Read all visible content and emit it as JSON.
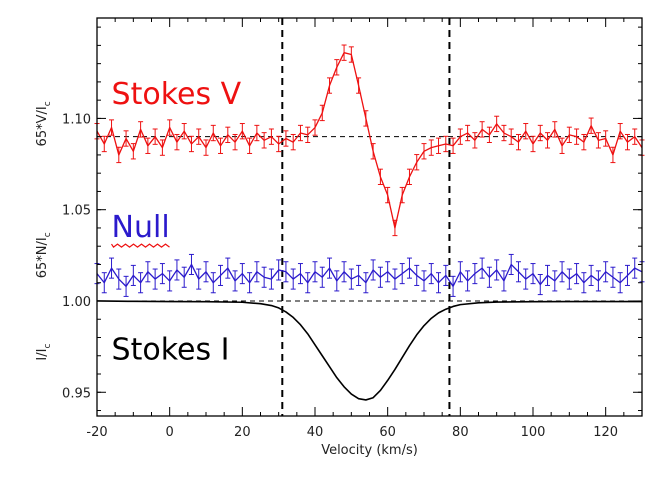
{
  "chart_data": {
    "type": "line",
    "title": "",
    "xlabel": "Velocity (km/s)",
    "xlim": [
      -20,
      130
    ],
    "ylim": [
      0.937,
      1.155
    ],
    "x_ticks": [
      -20,
      0,
      20,
      40,
      60,
      80,
      100,
      120
    ],
    "y_ticks": [
      0.95,
      1.0,
      1.05,
      1.1
    ],
    "y_tick_labels": [
      "0.95",
      "1.00",
      "1.05",
      "1.10"
    ],
    "ylabels": [
      {
        "id": "v",
        "parts": [
          "65*V/I",
          "c"
        ],
        "y_center": 1.097
      },
      {
        "id": "n",
        "parts": [
          "65*N/I",
          "c"
        ],
        "y_center": 1.025
      },
      {
        "id": "i",
        "parts": [
          "I/I",
          "c"
        ],
        "y_center": 0.972
      }
    ],
    "annotations": [
      {
        "id": "stokes-v",
        "text": "Stokes V",
        "color": "#ee1111",
        "x": -16,
        "y": 1.108
      },
      {
        "id": "null",
        "text": "Null",
        "color": "#2b1acc",
        "x": -16,
        "y": 1.035,
        "squiggle_color": "#ee1111"
      },
      {
        "id": "stokes-i",
        "text": "Stokes I",
        "color": "#000000",
        "x": -16,
        "y": 0.968
      }
    ],
    "reference_lines": {
      "horizontal": [
        1.09,
        1.0
      ],
      "vertical": [
        31,
        77
      ]
    },
    "series": [
      {
        "name": "Stokes V",
        "color": "#ee1111",
        "errorbar": 0.0042,
        "x": [
          -20,
          -18,
          -16,
          -14,
          -12,
          -10,
          -8,
          -6,
          -4,
          -2,
          0,
          2,
          4,
          6,
          8,
          10,
          12,
          14,
          16,
          18,
          20,
          22,
          24,
          26,
          28,
          30,
          32,
          34,
          36,
          38,
          40,
          42,
          44,
          46,
          48,
          50,
          52,
          54,
          56,
          58,
          60,
          62,
          64,
          66,
          68,
          70,
          72,
          74,
          76,
          78,
          80,
          82,
          84,
          86,
          88,
          90,
          92,
          94,
          96,
          98,
          100,
          102,
          104,
          106,
          108,
          110,
          112,
          114,
          116,
          118,
          120,
          122,
          124,
          126,
          128,
          130
        ],
        "values": [
          1.093,
          1.086,
          1.095,
          1.08,
          1.089,
          1.082,
          1.094,
          1.085,
          1.09,
          1.084,
          1.095,
          1.087,
          1.093,
          1.086,
          1.09,
          1.084,
          1.092,
          1.085,
          1.091,
          1.087,
          1.093,
          1.085,
          1.092,
          1.088,
          1.09,
          1.086,
          1.089,
          1.087,
          1.092,
          1.091,
          1.095,
          1.103,
          1.118,
          1.128,
          1.136,
          1.135,
          1.118,
          1.1,
          1.082,
          1.068,
          1.058,
          1.04,
          1.058,
          1.068,
          1.076,
          1.082,
          1.084,
          1.085,
          1.086,
          1.085,
          1.09,
          1.092,
          1.088,
          1.094,
          1.091,
          1.097,
          1.092,
          1.09,
          1.087,
          1.093,
          1.086,
          1.092,
          1.088,
          1.094,
          1.085,
          1.091,
          1.09,
          1.087,
          1.096,
          1.088,
          1.089,
          1.08,
          1.093,
          1.087,
          1.09,
          1.084
        ]
      },
      {
        "name": "Null",
        "color": "#2b1acc",
        "errorbar": 0.0055,
        "x": [
          -20,
          -18,
          -16,
          -14,
          -12,
          -10,
          -8,
          -6,
          -4,
          -2,
          0,
          2,
          4,
          6,
          8,
          10,
          12,
          14,
          16,
          18,
          20,
          22,
          24,
          26,
          28,
          30,
          32,
          34,
          36,
          38,
          40,
          42,
          44,
          46,
          48,
          50,
          52,
          54,
          56,
          58,
          60,
          62,
          64,
          66,
          68,
          70,
          72,
          74,
          76,
          78,
          80,
          82,
          84,
          86,
          88,
          90,
          92,
          94,
          96,
          98,
          100,
          102,
          104,
          106,
          108,
          110,
          112,
          114,
          116,
          118,
          120,
          122,
          124,
          126,
          128,
          130
        ],
        "values": [
          1.015,
          1.01,
          1.018,
          1.012,
          1.008,
          1.014,
          1.01,
          1.016,
          1.012,
          1.015,
          1.011,
          1.017,
          1.013,
          1.02,
          1.012,
          1.016,
          1.01,
          1.014,
          1.018,
          1.011,
          1.015,
          1.01,
          1.016,
          1.013,
          1.012,
          1.017,
          1.016,
          1.012,
          1.015,
          1.01,
          1.016,
          1.013,
          1.018,
          1.011,
          1.016,
          1.012,
          1.014,
          1.01,
          1.017,
          1.013,
          1.016,
          1.012,
          1.015,
          1.018,
          1.014,
          1.011,
          1.015,
          1.01,
          1.014,
          1.008,
          1.016,
          1.011,
          1.015,
          1.018,
          1.013,
          1.017,
          1.011,
          1.02,
          1.016,
          1.012,
          1.015,
          1.009,
          1.014,
          1.011,
          1.016,
          1.012,
          1.015,
          1.01,
          1.014,
          1.011,
          1.016,
          1.013,
          1.01,
          1.014,
          1.018,
          1.016
        ]
      },
      {
        "name": "Stokes I",
        "color": "#000000",
        "errorbar": 0,
        "x": [
          -20,
          -10,
          0,
          10,
          20,
          25,
          28,
          30,
          32,
          34,
          36,
          38,
          40,
          42,
          44,
          46,
          48,
          50,
          52,
          54,
          56,
          58,
          60,
          62,
          64,
          66,
          68,
          70,
          72,
          74,
          76,
          78,
          80,
          85,
          90,
          100,
          110,
          120,
          130
        ],
        "values": [
          1.0,
          0.9998,
          0.9997,
          0.9996,
          0.9993,
          0.9985,
          0.9975,
          0.9962,
          0.994,
          0.991,
          0.987,
          0.982,
          0.976,
          0.97,
          0.964,
          0.958,
          0.953,
          0.949,
          0.9465,
          0.9458,
          0.947,
          0.951,
          0.9565,
          0.9625,
          0.969,
          0.9755,
          0.9815,
          0.9865,
          0.9905,
          0.9935,
          0.9955,
          0.997,
          0.998,
          0.999,
          0.9994,
          0.9996,
          0.9997,
          0.9997,
          0.9997
        ]
      }
    ]
  }
}
